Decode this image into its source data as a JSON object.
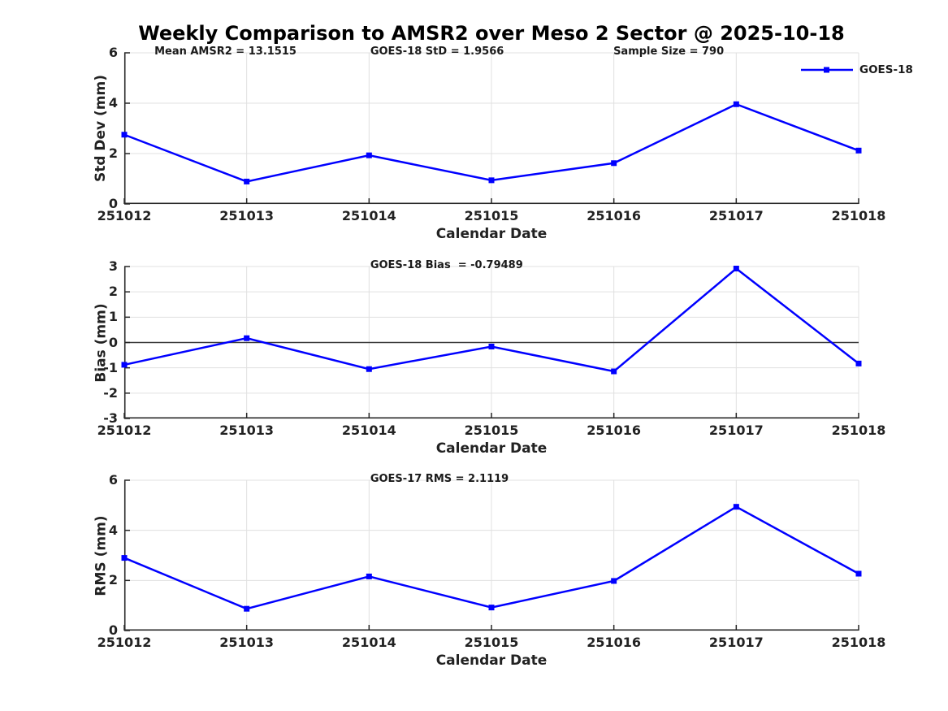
{
  "title": "Weekly Comparison to AMSR2 over Meso 2 Sector @ 2025-10-18",
  "chart_data": {
    "type": "line",
    "categories": [
      "251012",
      "251013",
      "251014",
      "251015",
      "251016",
      "251017",
      "251018"
    ],
    "xlabel": "Calendar Date",
    "legend": "GOES-18",
    "line_color": "#0000ff",
    "grid_color": "#e0e0e0",
    "axis_color": "#262626",
    "zero_line_color": "#3c3c3c",
    "grid": true,
    "legend_position": "top-right",
    "subplots": [
      {
        "ylabel": "Std Dev (mm)",
        "ylim": [
          0,
          6
        ],
        "yticks": [
          0,
          2,
          4,
          6
        ],
        "values": [
          2.75,
          0.89,
          1.93,
          0.94,
          1.62,
          3.96,
          2.12
        ],
        "annotations": [
          "Mean AMSR2 = 13.1515",
          "GOES-18 StD = 1.9566",
          "Sample Size = 790"
        ],
        "zero_line": false,
        "has_legend": true
      },
      {
        "ylabel": "Bias (mm)",
        "ylim": [
          -3,
          3
        ],
        "yticks": [
          -3,
          -2,
          -1,
          0,
          1,
          2,
          3
        ],
        "values": [
          -0.88,
          0.17,
          -1.05,
          -0.16,
          -1.14,
          2.92,
          -0.83
        ],
        "annotations": [
          "GOES-18 Bias  = -0.79489"
        ],
        "zero_line": true,
        "has_legend": false
      },
      {
        "ylabel": "RMS (mm)",
        "ylim": [
          0,
          6
        ],
        "yticks": [
          0,
          2,
          4,
          6
        ],
        "values": [
          2.9,
          0.87,
          2.16,
          0.92,
          1.98,
          4.94,
          2.27
        ],
        "annotations": [
          "GOES-17 RMS = 2.1119"
        ],
        "zero_line": false,
        "has_legend": false
      }
    ]
  }
}
